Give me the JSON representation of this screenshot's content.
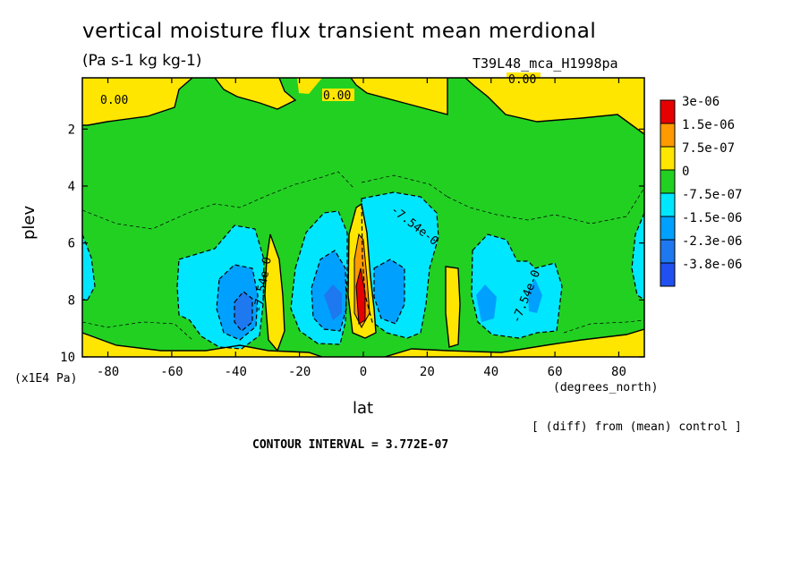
{
  "chart_data": {
    "type": "heatmap",
    "title": "vertical moisture flux transient mean merdional",
    "units": "(Pa s-1 kg kg-1)",
    "dataset_label": "T39L48_mca_H1998pa",
    "xlabel": "lat",
    "x_units": "(degrees_north)",
    "ylabel": "plev",
    "y_units": "(x1E4 Pa)",
    "xlim": [
      -88,
      88
    ],
    "ylim": [
      10,
      0.2
    ],
    "x_ticks": [
      "-80",
      "-60",
      "-40",
      "-20",
      "0",
      "20",
      "40",
      "60",
      "80"
    ],
    "y_ticks": [
      "2",
      "4",
      "6",
      "8",
      "10"
    ],
    "legend": {
      "placement": "right",
      "labels": [
        "3e-06",
        "1.5e-06",
        "7.5e-07",
        "0",
        "-7.5e-07",
        "-1.5e-06",
        "-2.3e-06",
        "-3.8e-06"
      ],
      "colors": [
        "#e60000",
        "#ff9a00",
        "#ffe600",
        "#22d022",
        "#00e6ff",
        "#00a0ff",
        "#1e78f0",
        "#2050f0"
      ]
    },
    "contour_labels": [
      "0.00",
      "0.00",
      "0.00",
      "-7.54e-0",
      "-7.54e-0",
      "-7.54e-0"
    ],
    "contour_interval_text": "CONTOUR INTERVAL = 3.772E-07",
    "diff_note": "[ (diff) from (mean) control ]",
    "features": [
      {
        "lat": -38,
        "plev": 8.4,
        "value": -2.3e-06
      },
      {
        "lat": -6,
        "plev": 7.8,
        "value": -1.5e-06
      },
      {
        "lat": -1,
        "plev": 7.7,
        "value": 3e-06
      },
      {
        "lat": 4,
        "plev": 7.8,
        "value": -1.5e-06
      },
      {
        "lat": 40,
        "plev": 8.2,
        "value": -1.5e-06
      }
    ]
  }
}
